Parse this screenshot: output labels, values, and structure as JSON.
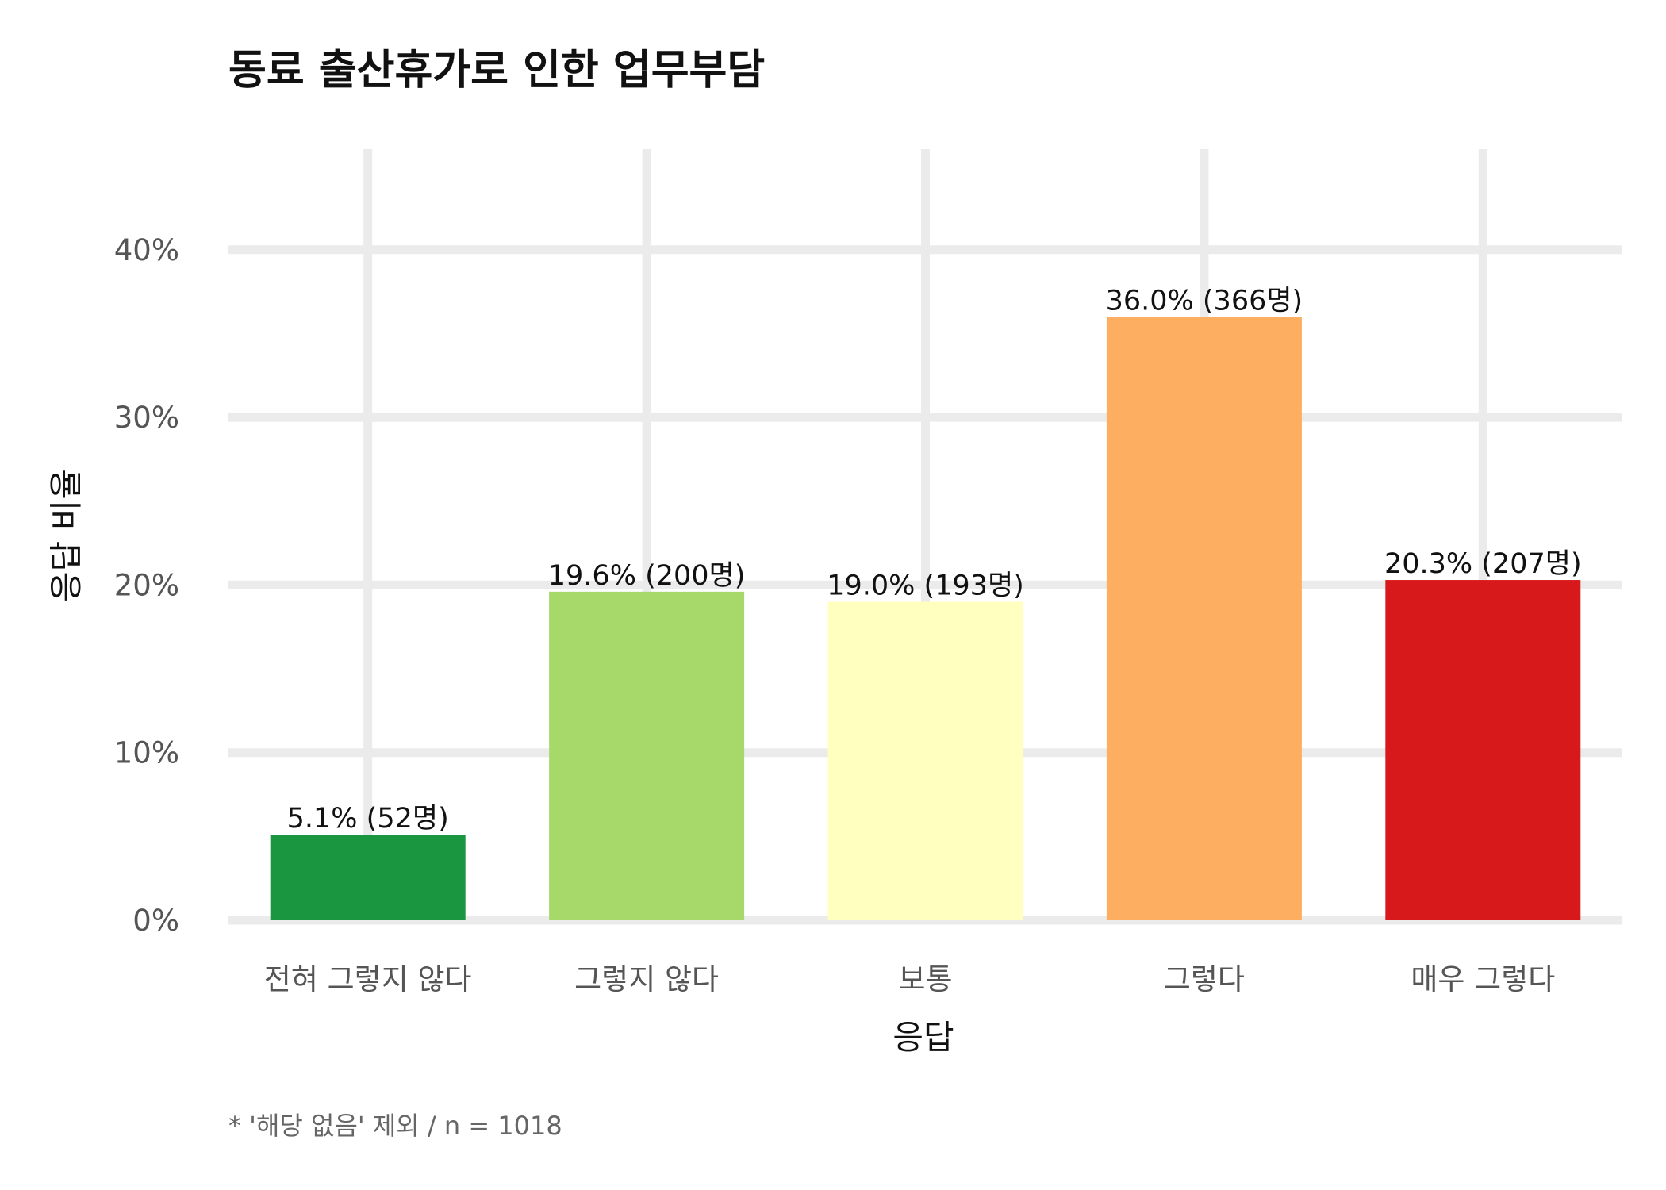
{
  "chart_data": {
    "type": "bar",
    "title": "동료 출산휴가로 인한 업무부담",
    "xlabel": "응답",
    "ylabel": "응답 비율",
    "caption": "* '해당 없음' 제외 / n = 1018",
    "categories": [
      "전혀 그렇지 않다",
      "그렇지 않다",
      "보통",
      "그렇다",
      "매우 그렇다"
    ],
    "values": [
      5.1,
      19.6,
      19.0,
      36.0,
      20.3
    ],
    "counts": [
      52,
      200,
      193,
      366,
      207
    ],
    "data_labels": [
      "5.1% (52명)",
      "19.6% (200명)",
      "19.0% (193명)",
      "36.0% (366명)",
      "20.3% (207명)"
    ],
    "colors": [
      "#1a9641",
      "#a6d96a",
      "#ffffbf",
      "#fdae61",
      "#d7191c"
    ],
    "ylim": [
      0,
      46
    ],
    "yticks": [
      0,
      10,
      20,
      30,
      40
    ],
    "ytick_labels": [
      "0%",
      "10%",
      "20%",
      "30%",
      "40%"
    ],
    "grid": true,
    "legend": "none"
  }
}
